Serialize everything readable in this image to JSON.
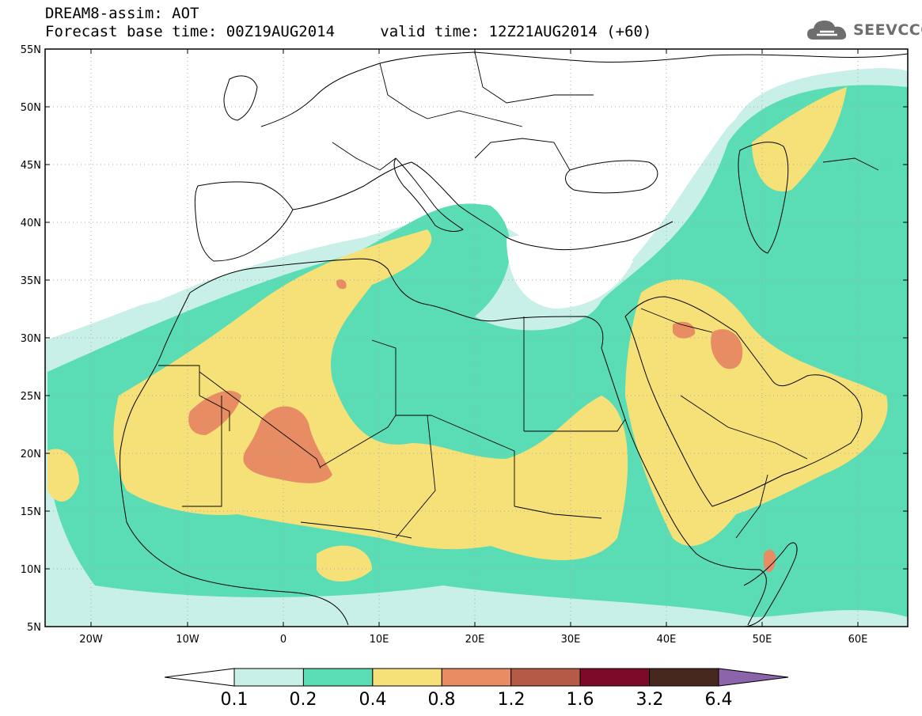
{
  "header": {
    "line1": "DREAM8-assim: AOT",
    "base_label": "Forecast base time: 00Z19AUG2014",
    "valid_label": "valid time: 12Z21AUG2014 (+60)"
  },
  "logo": {
    "text": "SEEVCCC",
    "icon": "cloud-icon"
  },
  "map": {
    "type": "choropleth-contour",
    "variable": "AOT",
    "lon_range": [
      -25,
      65
    ],
    "lat_range": [
      5,
      55
    ],
    "x_ticks": [
      "20W",
      "10W",
      "0",
      "10E",
      "20E",
      "30E",
      "40E",
      "50E",
      "60E"
    ],
    "y_ticks": [
      "55N",
      "50N",
      "45N",
      "40N",
      "35N",
      "30N",
      "25N",
      "20N",
      "15N",
      "10N",
      "5N"
    ],
    "grid": "dotted"
  },
  "colorbar": {
    "levels": [
      "0.1",
      "0.2",
      "0.4",
      "0.8",
      "1.2",
      "1.6",
      "3.2",
      "6.4"
    ],
    "colors": [
      "#c8f0e8",
      "#5adcb4",
      "#f5e178",
      "#e88c64",
      "#b45a46",
      "#7d0a28",
      "#46281e"
    ],
    "under_color": "#ffffff",
    "over_color": "#8c64aa"
  }
}
